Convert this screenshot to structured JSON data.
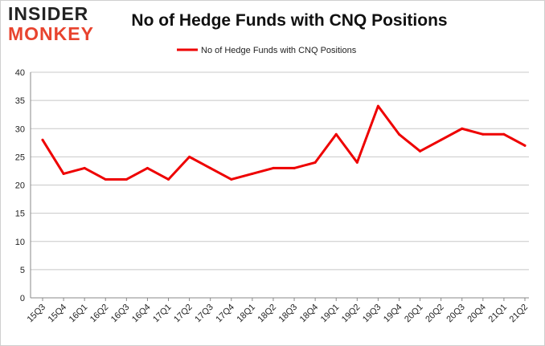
{
  "logo": {
    "line1": "INSIDER",
    "line2": "MONKEY"
  },
  "chart_data": {
    "type": "line",
    "title": "No of Hedge Funds with CNQ Positions",
    "xlabel": "",
    "ylabel": "",
    "ylim": [
      0,
      40
    ],
    "yticks": [
      0,
      5,
      10,
      15,
      20,
      25,
      30,
      35,
      40
    ],
    "grid": true,
    "legend_position": "top-center",
    "categories": [
      "15Q3",
      "15Q4",
      "16Q1",
      "16Q2",
      "16Q3",
      "16Q4",
      "17Q1",
      "17Q2",
      "17Q3",
      "17Q4",
      "18Q1",
      "18Q2",
      "18Q3",
      "18Q4",
      "19Q1",
      "19Q2",
      "19Q3",
      "19Q4",
      "20Q1",
      "20Q2",
      "20Q3",
      "20Q4",
      "21Q1",
      "21Q2"
    ],
    "series": [
      {
        "name": "No of Hedge Funds with CNQ Positions",
        "color": "#ee0000",
        "values": [
          28,
          22,
          23,
          21,
          21,
          23,
          21,
          25,
          23,
          21,
          22,
          23,
          23,
          24,
          29,
          24,
          34,
          29,
          26,
          28,
          30,
          29,
          29,
          27
        ]
      }
    ]
  }
}
